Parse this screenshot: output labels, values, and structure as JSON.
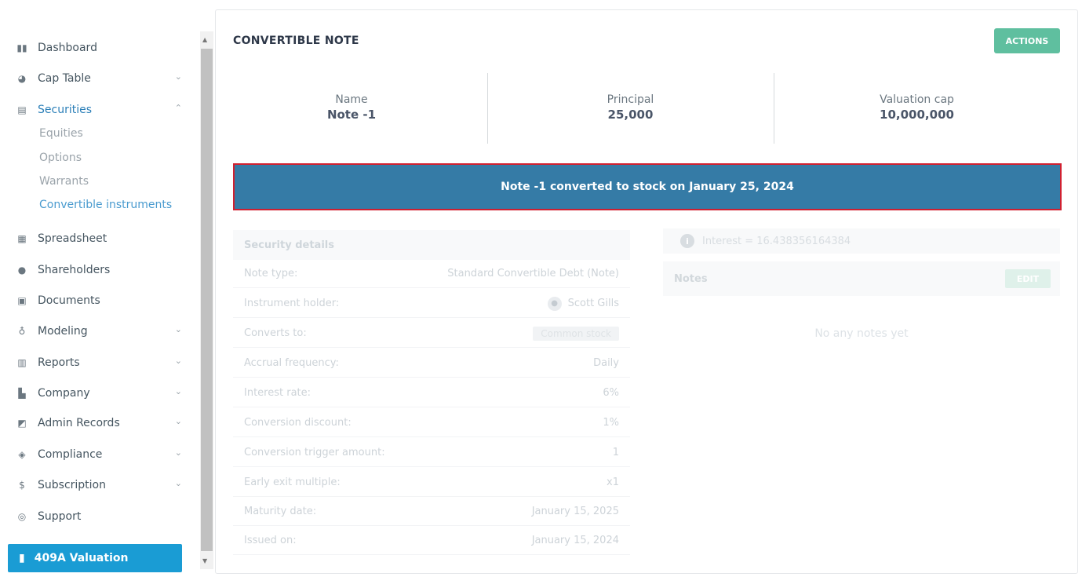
{
  "sidebar": {
    "items": [
      {
        "label": "Dashboard",
        "icon": "dashboard-icon"
      },
      {
        "label": "Cap Table",
        "icon": "pie-chart-icon"
      },
      {
        "label": "Securities",
        "icon": "clipboard-icon"
      },
      {
        "label": "Spreadsheet",
        "icon": "grid-icon"
      },
      {
        "label": "Shareholders",
        "icon": "user-icon"
      },
      {
        "label": "Documents",
        "icon": "folder-icon"
      },
      {
        "label": "Modeling",
        "icon": "lightbulb-icon"
      },
      {
        "label": "Reports",
        "icon": "report-icon"
      },
      {
        "label": "Company",
        "icon": "building-icon"
      },
      {
        "label": "Admin Records",
        "icon": "admin-records-icon"
      },
      {
        "label": "Compliance",
        "icon": "shield-check-icon"
      },
      {
        "label": "Subscription",
        "icon": "dollar-icon"
      },
      {
        "label": "Support",
        "icon": "support-icon"
      }
    ],
    "securities_sub": [
      "Equities",
      "Options",
      "Warrants",
      "Convertible instruments"
    ],
    "valuation_button": "409A Valuation"
  },
  "card": {
    "title": "CONVERTIBLE NOTE",
    "actions_label": "ACTIONS",
    "summary": [
      {
        "label": "Name",
        "value": "Note -1"
      },
      {
        "label": "Principal",
        "value": "25,000"
      },
      {
        "label": "Valuation cap",
        "value": "10,000,000"
      }
    ],
    "banner": "Note -1 converted to stock on January 25, 2024"
  },
  "details": {
    "header": "Security details",
    "rows": [
      {
        "label": "Note type:",
        "value": "Standard Convertible Debt (Note)"
      },
      {
        "label": "Instrument holder:",
        "value": "Scott Gills"
      },
      {
        "label": "Converts to:",
        "value": "Common stock"
      },
      {
        "label": "Accrual frequency:",
        "value": "Daily"
      },
      {
        "label": "Interest rate:",
        "value": "6%"
      },
      {
        "label": "Conversion discount:",
        "value": "1%"
      },
      {
        "label": "Conversion trigger amount:",
        "value": "1"
      },
      {
        "label": "Early exit multiple:",
        "value": "x1"
      },
      {
        "label": "Maturity date:",
        "value": "January 15, 2025"
      },
      {
        "label": "Issued on:",
        "value": "January 15, 2024"
      }
    ]
  },
  "interest": {
    "text": "Interest = 16.438356164384"
  },
  "notes": {
    "title": "Notes",
    "edit_label": "EDIT",
    "empty_text": "No any notes yet"
  }
}
